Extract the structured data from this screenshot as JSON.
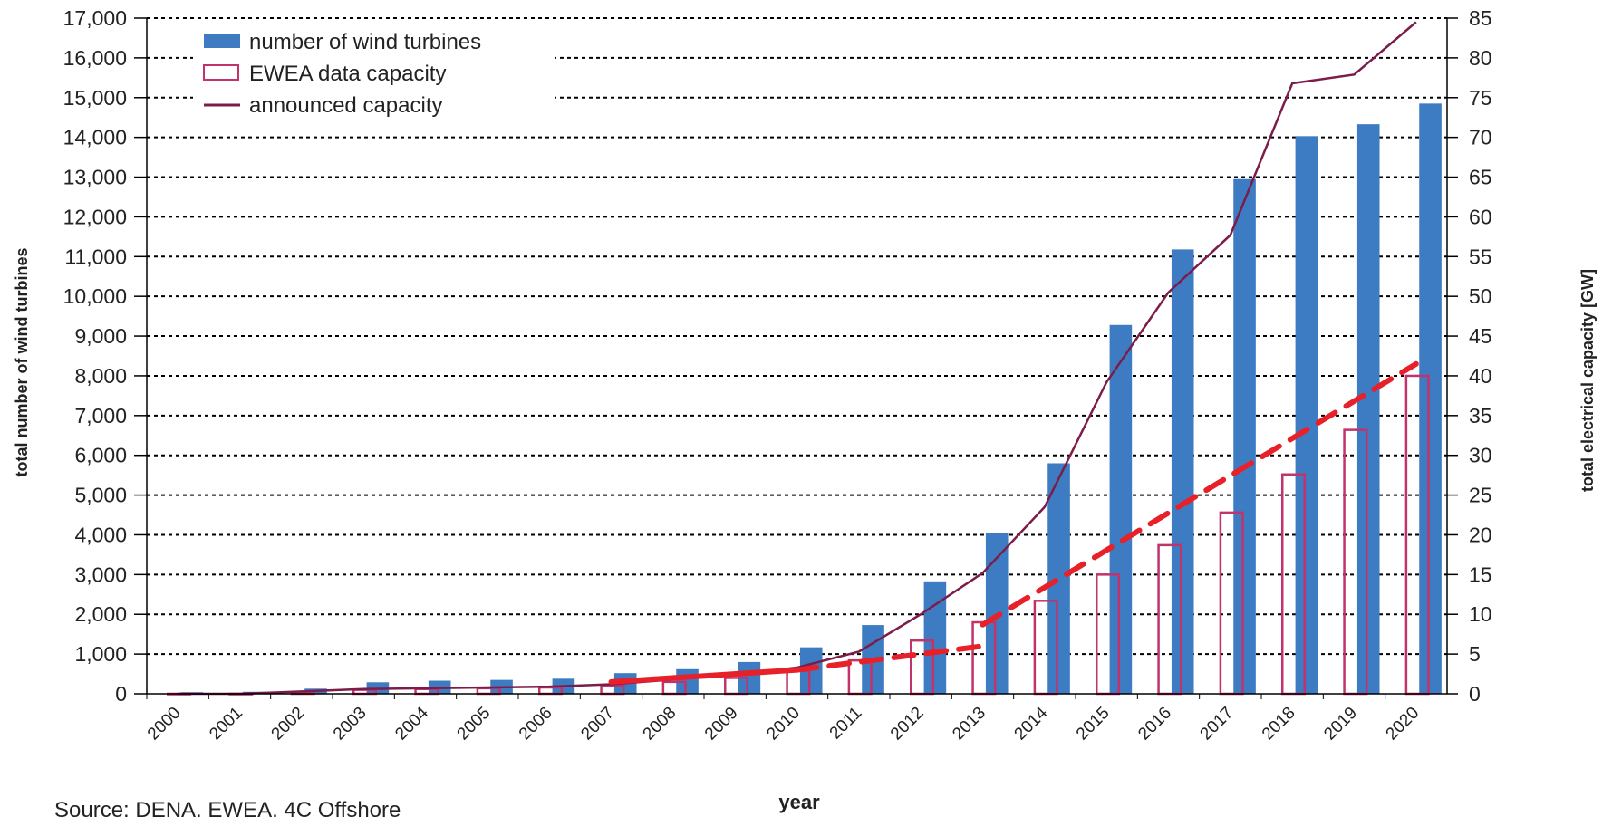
{
  "chart_data": {
    "type": "bar",
    "title": "",
    "xlabel": "year",
    "ylabel_left": "total number of wind turbines",
    "ylabel_right": "total electrical capacity  [GW]",
    "ylim_left": [
      0,
      17000
    ],
    "ylim_right": [
      0,
      85
    ],
    "left_ticks": [
      "0",
      "1,000",
      "2,000",
      "3,000",
      "4,000",
      "5,000",
      "6,000",
      "7,000",
      "8,000",
      "9,000",
      "10,000",
      "11,000",
      "12,000",
      "13,000",
      "14,000",
      "15,000",
      "16,000",
      "17,000"
    ],
    "right_ticks": [
      "0",
      "5",
      "10",
      "15",
      "20",
      "25",
      "30",
      "35",
      "40",
      "45",
      "50",
      "55",
      "60",
      "65",
      "70",
      "75",
      "80",
      "85"
    ],
    "categories": [
      "2000",
      "2001",
      "2002",
      "2003",
      "2004",
      "2005",
      "2006",
      "2007",
      "2008",
      "2009",
      "2010",
      "2011",
      "2012",
      "2013",
      "2014",
      "2015",
      "2016",
      "2017",
      "2018",
      "2019",
      "2020"
    ],
    "grid": true,
    "legend_position": "top-left",
    "series": [
      {
        "name": "number of wind turbines",
        "axis": "left",
        "kind": "bar",
        "color": "#3d7cc2",
        "values": [
          40,
          50,
          130,
          290,
          330,
          350,
          380,
          520,
          620,
          800,
          1170,
          1730,
          2830,
          4040,
          5800,
          9280,
          11180,
          12950,
          14030,
          14330,
          14850
        ]
      },
      {
        "name": "EWEA data capacity",
        "axis": "right",
        "kind": "bar-outline",
        "color": "#c0336b",
        "values": [
          0.0,
          0.0,
          0.2,
          0.5,
          0.6,
          0.7,
          0.8,
          1.0,
          1.5,
          2.0,
          2.9,
          4.2,
          6.7,
          9.0,
          11.7,
          15.0,
          18.7,
          22.8,
          27.6,
          33.2,
          40.0
        ]
      },
      {
        "name": "announced capacity",
        "axis": "right",
        "kind": "line",
        "color": "#7b1c4a",
        "values": [
          0.0,
          0.0,
          0.3,
          0.6,
          0.7,
          0.8,
          0.9,
          1.2,
          1.8,
          2.4,
          3.3,
          5.3,
          10.0,
          15.2,
          23.5,
          39.2,
          50.5,
          57.7,
          76.8,
          77.9,
          84.5
        ]
      }
    ],
    "annotations": {
      "trend_color": "#e8202a",
      "trend_solid": {
        "x": [
          "2007",
          "2010"
        ],
        "y": [
          1.5,
          3.0
        ]
      },
      "trend_dashed": {
        "x": [
          "2010",
          "2013"
        ],
        "y": [
          3.0,
          6.0
        ]
      },
      "trend_dashed_2": {
        "x": [
          "2013",
          "2020"
        ],
        "y": [
          8.7,
          41.5
        ]
      }
    }
  },
  "source_text": "Source: DENA, EWEA, 4C Offshore"
}
